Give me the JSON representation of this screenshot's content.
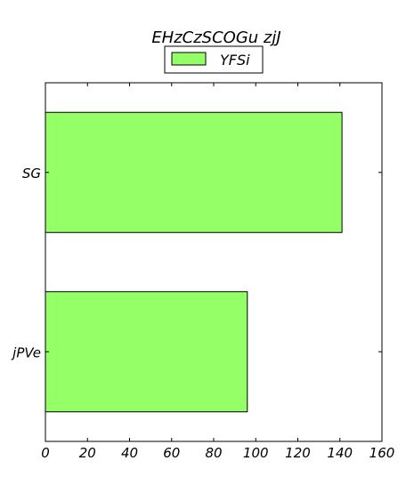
{
  "chart_data": {
    "type": "bar",
    "orientation": "horizontal",
    "title": "EHzCzSCOGu zjJ",
    "xlabel": "",
    "ylabel": "",
    "categories": [
      "SG",
      "jPVe"
    ],
    "series": [
      {
        "name": "YFSi",
        "values": [
          141,
          96
        ],
        "color": "#94ff66"
      }
    ],
    "xlim": [
      0,
      160
    ],
    "xticks": [
      0,
      20,
      40,
      60,
      80,
      100,
      120,
      140,
      160
    ],
    "grid": false,
    "legend_position": "top-center"
  }
}
